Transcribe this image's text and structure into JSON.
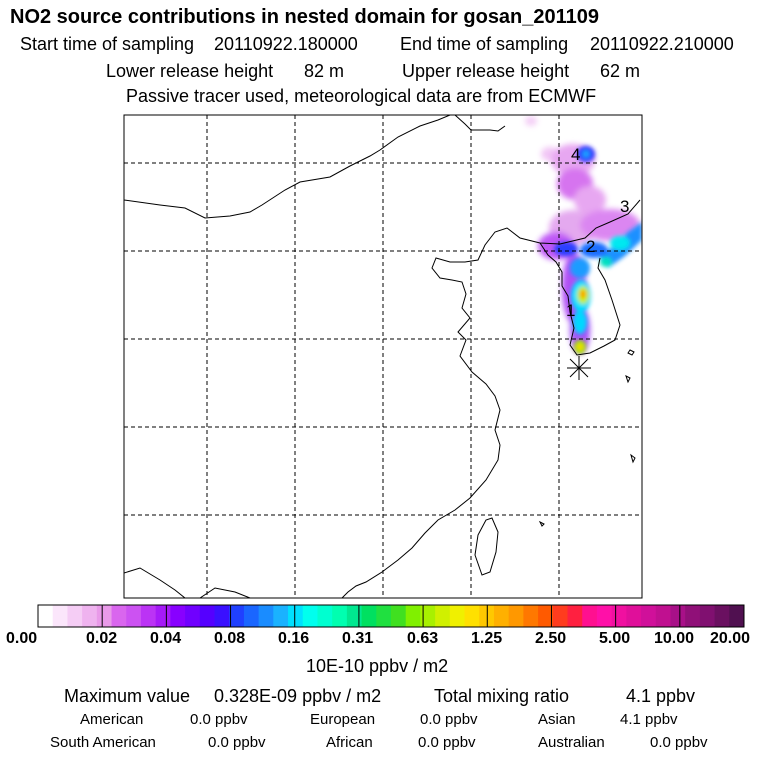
{
  "title": "NO2 source contributions in nested domain for gosan_201109",
  "header": {
    "start_label": "Start time of sampling",
    "start_value": "20110922.180000",
    "end_label": "End time of sampling",
    "end_value": "20110922.210000",
    "lower_label": "Lower release height",
    "lower_value": "82 m",
    "upper_label": "Upper release height",
    "upper_value": "62 m",
    "note": "Passive tracer used, meteorological data are from ECMWF"
  },
  "map": {
    "plume_labels": [
      "1",
      "2",
      "3",
      "4"
    ],
    "receptor_marker": "star-icon"
  },
  "colorbar": {
    "tick_labels": [
      "0.00",
      "0.02",
      "0.04",
      "0.08",
      "0.16",
      "0.31",
      "0.63",
      "1.25",
      "2.50",
      "5.00",
      "10.00",
      "20.00"
    ],
    "colors": [
      "#ffffff",
      "#fbe6fb",
      "#f5cdf5",
      "#efb3ef",
      "#e99ae9",
      "#d966ee",
      "#cc52f2",
      "#bb33f5",
      "#a61af8",
      "#8800ff",
      "#7000ff",
      "#5500ff",
      "#3a10ff",
      "#2040ff",
      "#1a66ff",
      "#1a8cff",
      "#1ab2ff",
      "#00e0ff",
      "#00ffee",
      "#00ffd0",
      "#00ffb0",
      "#00e890",
      "#00e060",
      "#20e040",
      "#40e020",
      "#80f000",
      "#a8f000",
      "#d0f000",
      "#f0f000",
      "#ffe000",
      "#ffc800",
      "#ffb000",
      "#ff9800",
      "#ff7800",
      "#ff5a00",
      "#ff3c1e",
      "#ff2040",
      "#ff1090",
      "#ff10a8",
      "#f010a0",
      "#e00f9a",
      "#d0109a",
      "#c01090",
      "#a81088",
      "#901078",
      "#801070",
      "#6a1060",
      "#501050"
    ],
    "unit": "10E-10 ppbv / m2"
  },
  "footer": {
    "max_label": "Maximum value",
    "max_value": "0.328E-09 ppbv / m2",
    "total_label": "Total mixing ratio",
    "total_value": "4.1 ppbv",
    "sources": [
      {
        "name": "American",
        "value": "0.0 ppbv"
      },
      {
        "name": "European",
        "value": "0.0 ppbv"
      },
      {
        "name": "Asian",
        "value": "4.1 ppbv"
      },
      {
        "name": "South American",
        "value": "0.0 ppbv"
      },
      {
        "name": "African",
        "value": "0.0 ppbv"
      },
      {
        "name": "Australian",
        "value": "0.0 ppbv"
      }
    ]
  }
}
